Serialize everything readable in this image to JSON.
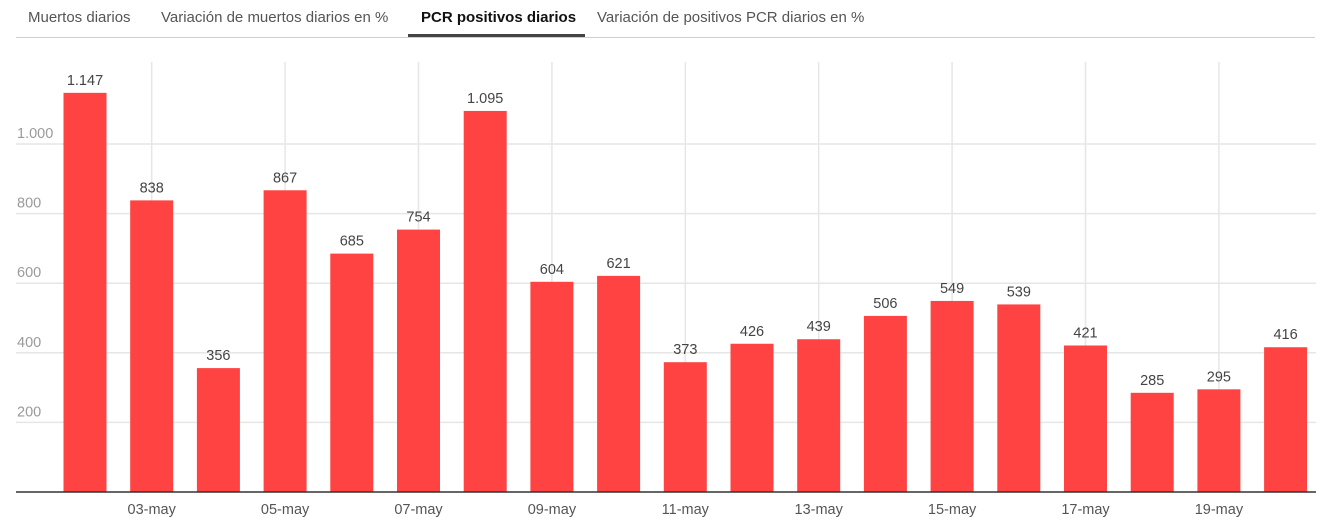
{
  "tabs": [
    {
      "label": "Muertos diarios",
      "active": false
    },
    {
      "label": "Variación de muertos diarios en %",
      "active": false
    },
    {
      "label": "PCR positivos diarios",
      "active": true
    },
    {
      "label": "Variación de positivos PCR diarios en %",
      "active": false
    }
  ],
  "colors": {
    "bar": "#ff4242",
    "grid": "#e6e6e6",
    "axis": "#333333"
  },
  "chart_data": {
    "type": "bar",
    "categories": [
      "02-may",
      "03-may",
      "04-may",
      "05-may",
      "06-may",
      "07-may",
      "08-may",
      "09-may",
      "10-may",
      "11-may",
      "12-may",
      "13-may",
      "14-may",
      "15-may",
      "16-may",
      "17-may",
      "18-may",
      "19-may",
      "20-may"
    ],
    "values": [
      1147,
      838,
      356,
      867,
      685,
      754,
      1095,
      604,
      621,
      373,
      426,
      439,
      506,
      549,
      539,
      421,
      285,
      295,
      416
    ],
    "value_labels": [
      "1.147",
      "838",
      "356",
      "867",
      "685",
      "754",
      "1.095",
      "604",
      "621",
      "373",
      "426",
      "439",
      "506",
      "549",
      "539",
      "421",
      "285",
      "295",
      "416"
    ],
    "x_tick_labels": [
      "03-may",
      "05-may",
      "07-may",
      "09-may",
      "11-may",
      "13-may",
      "15-may",
      "17-may",
      "19-may"
    ],
    "y_ticks": [
      200,
      400,
      600,
      800,
      1000
    ],
    "y_tick_labels": [
      "200",
      "400",
      "600",
      "800",
      "1.000"
    ],
    "ylim": [
      0,
      1240
    ],
    "grid": true,
    "title": "",
    "xlabel": "",
    "ylabel": ""
  }
}
